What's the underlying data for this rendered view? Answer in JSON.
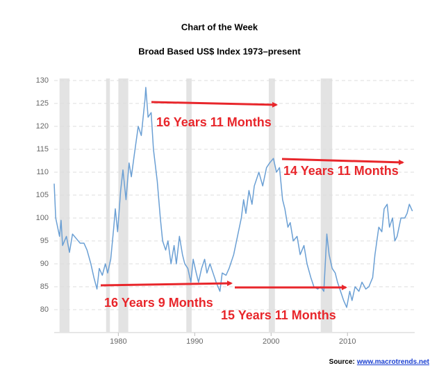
{
  "chart_data": {
    "type": "line",
    "title": "Chart of the Week",
    "subtitle": "Broad Based US$ Index 1973–present",
    "x": [
      1971.6,
      1971.8,
      1972.3,
      1972.5,
      1972.7,
      1973.2,
      1973.6,
      1974.0,
      1974.5,
      1975.0,
      1975.5,
      1975.9,
      1976.4,
      1976.8,
      1977.2,
      1977.5,
      1977.9,
      1978.3,
      1978.6,
      1979.0,
      1979.4,
      1979.6,
      1979.9,
      1980.3,
      1980.6,
      1981.0,
      1981.4,
      1981.7,
      1982.1,
      1982.6,
      1983.0,
      1983.5,
      1983.6,
      1983.9,
      1984.3,
      1984.6,
      1985.1,
      1985.5,
      1985.8,
      1986.2,
      1986.5,
      1986.9,
      1987.3,
      1987.6,
      1988.0,
      1988.4,
      1988.7,
      1989.1,
      1989.5,
      1989.8,
      1990.2,
      1990.5,
      1990.9,
      1991.3,
      1991.6,
      1992.0,
      1992.4,
      1992.8,
      1993.3,
      1993.6,
      1994.1,
      1994.5,
      1995.1,
      1995.6,
      1996.1,
      1996.4,
      1996.7,
      1997.1,
      1997.5,
      1997.8,
      1998.4,
      1998.9,
      1999.4,
      1999.8,
      2000.3,
      2000.7,
      2001.1,
      2001.5,
      2001.8,
      2002.2,
      2002.5,
      2002.9,
      2003.4,
      2003.8,
      2004.3,
      2004.7,
      2005.2,
      2005.6,
      2006.1,
      2006.5,
      2006.9,
      2007.3,
      2007.6,
      2008.0,
      2008.4,
      2008.7,
      2009.1,
      2009.5,
      2009.9,
      2010.3,
      2010.6,
      2011.0,
      2011.5,
      2011.9,
      2012.4,
      2012.8,
      2013.3,
      2013.6,
      2014.1,
      2014.5,
      2014.8,
      2015.2,
      2015.5,
      2015.9,
      2016.2,
      2016.5,
      2017.0,
      2017.5,
      2017.8,
      2018.1,
      2018.5
    ],
    "series": [
      {
        "color": "#6a9fd4",
        "values": [
          107.5,
          100,
          96,
          99.5,
          94,
          96,
          92.5,
          96.5,
          95.5,
          94.5,
          94.5,
          93,
          90,
          87,
          84.5,
          89,
          87.5,
          90,
          88,
          91,
          98,
          102,
          97,
          106,
          110.5,
          104,
          112,
          109,
          114,
          120,
          118,
          126,
          128.5,
          122,
          123,
          115,
          108,
          100,
          95,
          93,
          95,
          90,
          94,
          90,
          96,
          92,
          90,
          89,
          86,
          91,
          88,
          86,
          89,
          91,
          88,
          90,
          88,
          86,
          84,
          88,
          87.5,
          89,
          92,
          96,
          100,
          104,
          101,
          106,
          103,
          107,
          110,
          107,
          111,
          112,
          113,
          110,
          111,
          104,
          102,
          98,
          99,
          95,
          96,
          92,
          94,
          90,
          87,
          85,
          84.5,
          85,
          84,
          96.5,
          92,
          89,
          88,
          86,
          84,
          82,
          80.5,
          84,
          82,
          85,
          84,
          86,
          84.5,
          85,
          87,
          92,
          98,
          97,
          102,
          103,
          98,
          100,
          95,
          96,
          100,
          100,
          101,
          103,
          101.5
        ]
      }
    ],
    "shaded_ranges": [
      [
        1972.3,
        1973.6
      ],
      [
        1978.4,
        1978.9
      ],
      [
        1980.0,
        1981.3
      ],
      [
        1988.9,
        1989.6
      ],
      [
        1999.7,
        2000.5
      ],
      [
        2006.5,
        2008.0
      ]
    ],
    "shade_color": "#e3e3e3",
    "xlim": [
      1971.6,
      2018.8
    ],
    "xticks": [
      1980,
      1990,
      2000,
      2010
    ],
    "ylim": [
      75,
      130
    ],
    "yticks": [
      80,
      85,
      90,
      95,
      100,
      105,
      110,
      115,
      120,
      125,
      130
    ],
    "grid": true,
    "annotations": [
      "16 Years 11 Months",
      "14 Years 11 Months",
      "16 Years 9 Months",
      "15 Years 11 Months"
    ]
  },
  "source": {
    "label": "Source:",
    "link": "www.macrotrends.net"
  }
}
